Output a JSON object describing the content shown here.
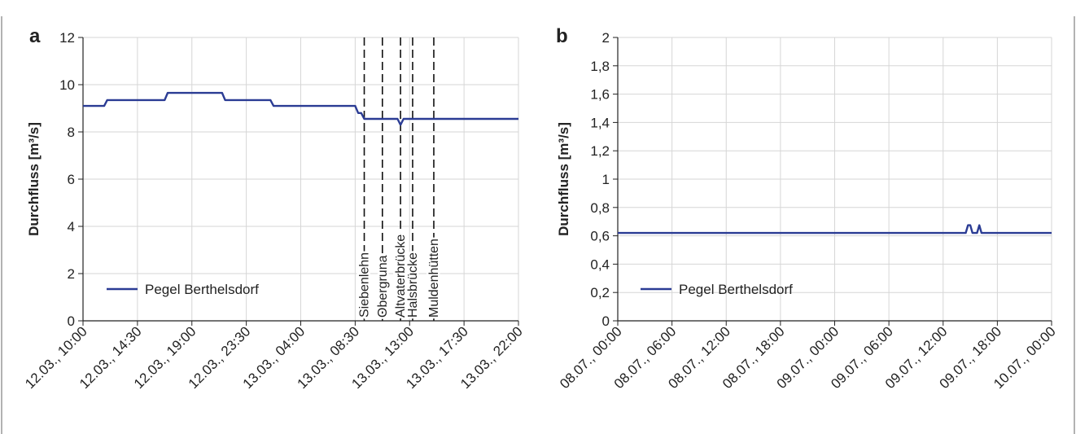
{
  "colors": {
    "series": "#2b3c94",
    "grid": "#d6d6d6",
    "axis": "#222222"
  },
  "chart_data": [
    {
      "panel": "a",
      "type": "line",
      "ylabel": "Durchfluss [m³/s]",
      "ylim": [
        0,
        12
      ],
      "yticks": [
        "0",
        "2",
        "4",
        "6",
        "8",
        "10",
        "12"
      ],
      "xticks": [
        "12.03., 10:00",
        "12.03., 14:30",
        "12.03., 19:00",
        "12.03., 23:30",
        "13.03., 04:00",
        "13.03., 08:30",
        "13.03., 13:00",
        "13.03., 17:30",
        "13.03., 22:00"
      ],
      "grid": true,
      "legend": {
        "position": "bottom-left",
        "entries": [
          "Pegel Berthelsdorf"
        ]
      },
      "series": [
        {
          "name": "Pegel Berthelsdorf",
          "x": [
            "12.03. 10:00",
            "12.03. 11:45",
            "12.03. 12:00",
            "12.03. 16:45",
            "12.03. 17:00",
            "12.03. 21:30",
            "12.03. 21:45",
            "13.03. 01:30",
            "13.03. 01:45",
            "13.03. 08:30",
            "13.03. 08:45",
            "13.03. 09:00",
            "13.03. 09:15",
            "13.03. 12:00",
            "13.03. 12:15",
            "13.03. 12:30",
            "13.03. 22:00"
          ],
          "y": [
            9.1,
            9.1,
            9.35,
            9.35,
            9.65,
            9.65,
            9.35,
            9.35,
            9.1,
            9.1,
            8.8,
            8.8,
            8.55,
            8.55,
            8.3,
            8.55,
            8.55
          ]
        }
      ],
      "markers": [
        {
          "x": "13.03. 09:15",
          "label": "Siebenlehn"
        },
        {
          "x": "13.03. 10:45",
          "label": "Obergruna"
        },
        {
          "x": "13.03. 12:15",
          "label": "Altvaterbrücke"
        },
        {
          "x": "13.03. 13:15",
          "label": "Halsbrücke"
        },
        {
          "x": "13.03. 15:00",
          "label": "Muldenhütten"
        }
      ]
    },
    {
      "panel": "b",
      "type": "line",
      "ylabel": "Durchfluss [m³/s]",
      "ylim": [
        0,
        2
      ],
      "yticks": [
        "0",
        "0,2",
        "0,4",
        "0,6",
        "0,8",
        "1",
        "1,2",
        "1,4",
        "1,6",
        "1,8",
        "2"
      ],
      "xticks": [
        "08.07., 00:00",
        "08.07., 06:00",
        "08.07., 12:00",
        "08.07., 18:00",
        "09.07., 00:00",
        "09.07., 06:00",
        "09.07., 12:00",
        "09.07., 18:00",
        "10.07., 00:00"
      ],
      "grid": true,
      "legend": {
        "position": "bottom-left",
        "entries": [
          "Pegel Berthelsdorf"
        ]
      },
      "series": [
        {
          "name": "Pegel Berthelsdorf",
          "x": [
            "08.07. 00:00",
            "09.07. 14:30",
            "09.07. 14:45",
            "09.07. 15:00",
            "09.07. 15:15",
            "09.07. 15:45",
            "09.07. 16:00",
            "09.07. 16:15",
            "10.07. 00:00"
          ],
          "y": [
            0.62,
            0.62,
            0.675,
            0.675,
            0.62,
            0.62,
            0.675,
            0.62,
            0.62
          ]
        }
      ]
    }
  ]
}
